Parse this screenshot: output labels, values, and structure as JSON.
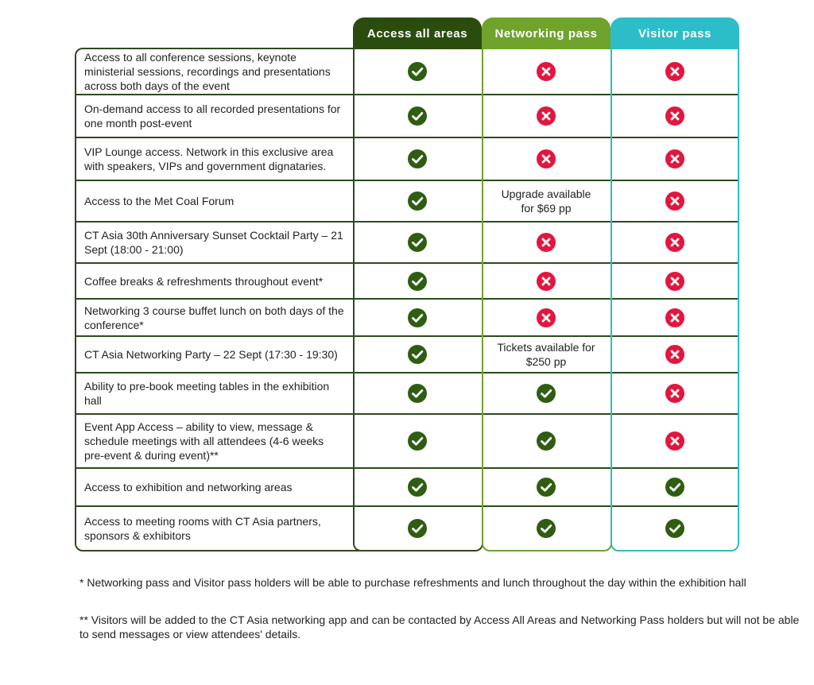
{
  "headers": [
    "Access all areas",
    "Networking pass",
    "Visitor pass"
  ],
  "colors": {
    "access_all_areas": "#2a4d0f",
    "networking_pass": "#6fa32c",
    "visitor_pass": "#2cbdc8",
    "check": "#2f5d12",
    "cross": "#e3163f"
  },
  "rows": [
    {
      "label": "Access to all conference sessions, keynote ministerial sessions, recordings and presentations across both days of the event",
      "c1": "check",
      "c2": "cross",
      "c3": "cross"
    },
    {
      "label": "On-demand access to all recorded presentations for one month post-event",
      "c1": "check",
      "c2": "cross",
      "c3": "cross"
    },
    {
      "label": "VIP Lounge access. Network in this exclusive area with speakers, VIPs and government dignataries.",
      "c1": "check",
      "c2": "cross",
      "c3": "cross"
    },
    {
      "label": "Access to the Met Coal Forum",
      "c1": "check",
      "c2": "Upgrade available for $69 pp",
      "c3": "cross"
    },
    {
      "label": "CT Asia 30th Anniversary Sunset Cocktail Party – 21 Sept (18:00 - 21:00)",
      "c1": "check",
      "c2": "cross",
      "c3": "cross"
    },
    {
      "label": "Coffee breaks & refreshments throughout event*",
      "c1": "check",
      "c2": "cross",
      "c3": "cross"
    },
    {
      "label": "Networking 3 course buffet lunch on both days of the conference*",
      "c1": "check",
      "c2": "cross",
      "c3": "cross"
    },
    {
      "label": "CT Asia Networking Party – 22 Sept (17:30 - 19:30)",
      "c1": "check",
      "c2": "Tickets available for $250 pp",
      "c3": "cross"
    },
    {
      "label": "Ability to pre-book meeting tables in the exhibition hall",
      "c1": "check",
      "c2": "check",
      "c3": "cross"
    },
    {
      "label": "Event App Access – ability to view, message & schedule meetings with all attendees (4-6 weeks pre-event & during event)**",
      "c1": "check",
      "c2": "check",
      "c3": "cross"
    },
    {
      "label": "Access to exhibition and networking areas",
      "c1": "check",
      "c2": "check",
      "c3": "check"
    },
    {
      "label": "Access to meeting rooms with CT Asia partners, sponsors & exhibitors",
      "c1": "check",
      "c2": "check",
      "c3": "check"
    }
  ],
  "footnotes": [
    "* Networking pass and Visitor pass holders will be able to purchase refreshments and lunch throughout the day within the exhibition hall",
    "** Visitors will be added to the CT Asia networking app and can be contacted by Access All Areas and Networking Pass holders but will not be able to send messages or view attendees' details."
  ]
}
